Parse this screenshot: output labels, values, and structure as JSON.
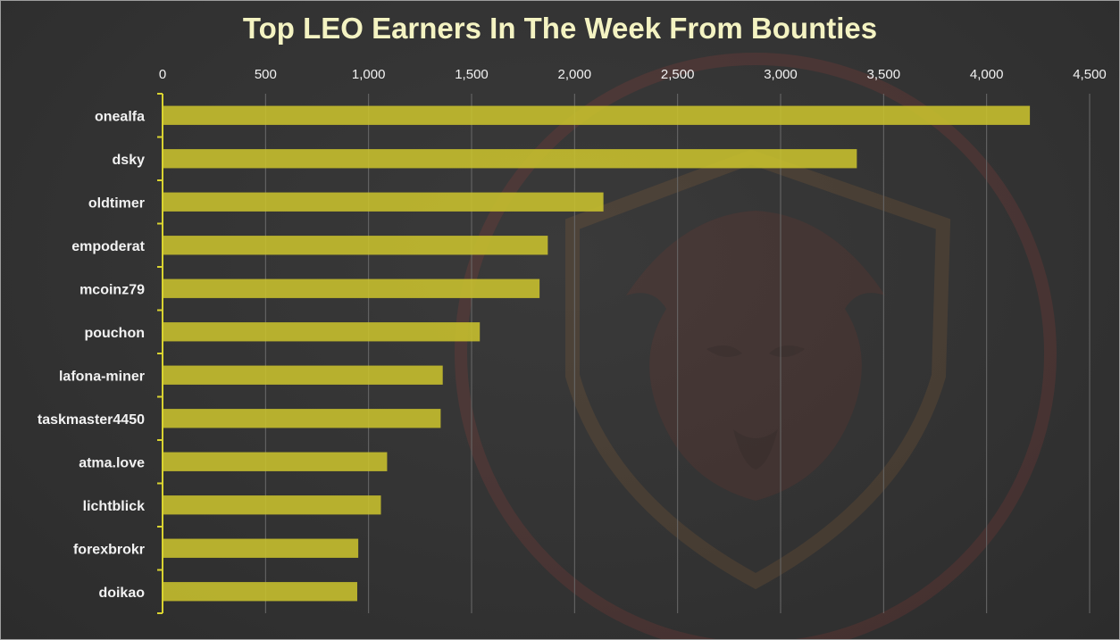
{
  "chart_data": {
    "type": "bar",
    "orientation": "horizontal",
    "title": "Top LEO Earners In The Week From Bounties",
    "categories": [
      "onealfa",
      "dsky",
      "oldtimer",
      "empoderat",
      "mcoinz79",
      "pouchon",
      "lafona-miner",
      "taskmaster4450",
      "atma.love",
      "lichtblick",
      "forexbrokr",
      "doikao"
    ],
    "values": [
      4210,
      3370,
      2140,
      1870,
      1830,
      1540,
      1360,
      1350,
      1090,
      1060,
      950,
      945
    ],
    "xlim": [
      0,
      4500
    ],
    "xticks": [
      "0",
      "500",
      "1,000",
      "1,500",
      "2,000",
      "2,500",
      "3,000",
      "3,500",
      "4,000",
      "4,500"
    ],
    "xaxis_position": "top",
    "grid": "vertical",
    "bar_color": "#c9c22e",
    "axis_color": "#d9d330",
    "background_color": "#333333",
    "watermark": "lion-shield-logo"
  }
}
